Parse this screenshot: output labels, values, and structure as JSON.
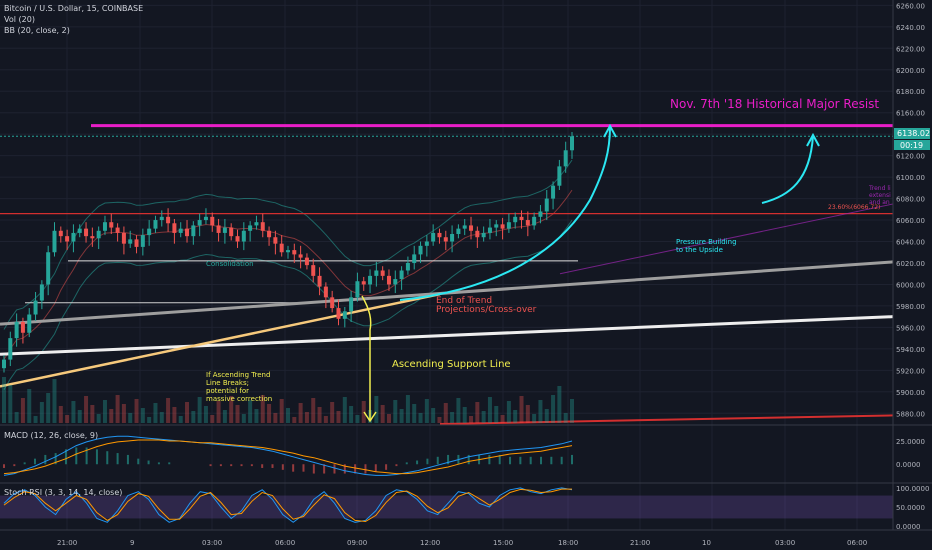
{
  "header": {
    "symbol": "Bitcoin / U.S. Dollar, 15, COINBASE",
    "vol": "Vol (20)",
    "bb": "BB (20, close, 2)"
  },
  "price_tag": {
    "value": "6138.02",
    "timer": "00:19"
  },
  "indicators": {
    "macd_title": "MACD (12, 26, close, 9)",
    "stoch_title": "Stoch RSI (3, 3, 14, 14, close)"
  },
  "annotations": {
    "resistance": "Nov. 7th '18 Historical Major Resist",
    "consolidation": "Consolidation",
    "end_trend_1": "End of Trend",
    "end_trend_2": "Projections/Cross-over",
    "ascending_support": "Ascending Support Line",
    "pressure_1": "Pressure Building",
    "pressure_2": "to the Upside",
    "break_1": "If Ascending Trend",
    "break_2": "Line Breaks;",
    "break_3": "potential for",
    "break_4": "massive correction",
    "fib": "23.60%(6066.72)",
    "trend_1": "Trend li",
    "trend_2": "extensi",
    "trend_3": "and an"
  },
  "colors": {
    "background": "#131722",
    "up": "#26a69a",
    "down": "#ef5350",
    "magenta": "#e91ec8",
    "cyan": "#2be7f2",
    "yellow": "#f2ef4f",
    "orange_line": "#f6c97c",
    "red_line": "#d32f2f",
    "price_line": "#26a69a"
  },
  "chart_data": {
    "type": "candlestick",
    "y_ticks": [
      "6260.00",
      "6240.00",
      "6220.00",
      "6200.00",
      "6180.00",
      "6160.00",
      "6140.00",
      "6120.00",
      "6100.00",
      "6080.00",
      "6060.00",
      "6040.00",
      "6020.00",
      "6000.00",
      "5980.00",
      "5960.00",
      "5940.00",
      "5920.00",
      "5900.00",
      "5880.00"
    ],
    "x_ticks": [
      "21:00",
      "9",
      "03:00",
      "06:00",
      "09:00",
      "12:00",
      "15:00",
      "18:00",
      "21:00",
      "10",
      "03:00",
      "06:00"
    ],
    "ylim": [
      5870,
      6265
    ],
    "resistance_level": 6148,
    "current_price": 6138.02,
    "horizontal_red": 6066,
    "consolidation_level": 6022,
    "candles_close": [
      5930,
      5950,
      5965,
      5955,
      5972,
      5985,
      6000,
      6030,
      6050,
      6045,
      6040,
      6048,
      6052,
      6045,
      6043,
      6050,
      6058,
      6053,
      6048,
      6038,
      6042,
      6035,
      6046,
      6052,
      6060,
      6063,
      6057,
      6048,
      6052,
      6045,
      6055,
      6060,
      6063,
      6055,
      6048,
      6053,
      6045,
      6040,
      6050,
      6055,
      6058,
      6050,
      6044,
      6038,
      6030,
      6032,
      6028,
      6025,
      6018,
      6008,
      5998,
      5988,
      5978,
      5968,
      5975,
      5988,
      6003,
      6000,
      6008,
      6013,
      6008,
      6000,
      6005,
      6013,
      6020,
      6028,
      6036,
      6040,
      6048,
      6044,
      6040,
      6047,
      6052,
      6055,
      6050,
      6044,
      6048,
      6053,
      6056,
      6052,
      6058,
      6063,
      6060,
      6055,
      6063,
      6068,
      6080,
      6092,
      6110,
      6125,
      6138.02
    ],
    "macd": {
      "title": "MACD (12, 26, close, 9)",
      "y_ticks": [
        "25.0000",
        "0.0000"
      ],
      "ylim": [
        -18,
        40
      ],
      "macd_line": [
        -12,
        -10,
        -6,
        -2,
        3,
        8,
        14,
        20,
        24,
        27,
        29,
        30,
        30,
        29,
        28,
        27,
        26,
        25,
        24,
        23,
        22,
        21,
        20,
        19,
        18,
        16,
        14,
        11,
        8,
        5,
        2,
        -1,
        -4,
        -7,
        -9,
        -11,
        -12,
        -12,
        -11,
        -9,
        -7,
        -4,
        -1,
        2,
        5,
        8,
        10,
        12,
        14,
        15,
        16,
        17,
        18,
        20,
        22,
        25
      ],
      "signal_line": [
        -10,
        -9,
        -7,
        -5,
        -2,
        2,
        6,
        11,
        15,
        19,
        22,
        24,
        25,
        26,
        26,
        26,
        25,
        25,
        24,
        23,
        23,
        22,
        21,
        20,
        19,
        18,
        16,
        14,
        12,
        9,
        7,
        4,
        1,
        -2,
        -4,
        -6,
        -8,
        -9,
        -10,
        -10,
        -9,
        -7,
        -5,
        -3,
        0,
        3,
        5,
        7,
        9,
        11,
        12,
        13,
        14,
        16,
        18,
        20
      ]
    },
    "stoch_rsi": {
      "title": "Stoch RSI (3, 3, 14, 14, close)",
      "y_ticks": [
        "100.0000",
        "50.0000",
        "0.0000"
      ],
      "ylim": [
        -5,
        105
      ],
      "k_line": [
        60,
        85,
        95,
        80,
        50,
        30,
        70,
        90,
        60,
        20,
        10,
        40,
        80,
        90,
        70,
        30,
        10,
        20,
        60,
        90,
        85,
        50,
        20,
        40,
        80,
        95,
        70,
        30,
        10,
        30,
        70,
        90,
        60,
        20,
        10,
        15,
        40,
        80,
        95,
        90,
        70,
        40,
        30,
        60,
        90,
        85,
        60,
        50,
        80,
        95,
        100,
        90,
        85,
        95,
        100,
        95
      ],
      "d_line": [
        55,
        75,
        90,
        85,
        60,
        40,
        60,
        80,
        70,
        35,
        15,
        30,
        65,
        85,
        78,
        45,
        18,
        18,
        45,
        78,
        88,
        62,
        30,
        33,
        65,
        88,
        80,
        45,
        18,
        25,
        55,
        82,
        72,
        35,
        15,
        12,
        28,
        62,
        88,
        92,
        78,
        52,
        35,
        48,
        78,
        88,
        72,
        55,
        70,
        88,
        96,
        94,
        88,
        90,
        97,
        97
      ]
    }
  }
}
